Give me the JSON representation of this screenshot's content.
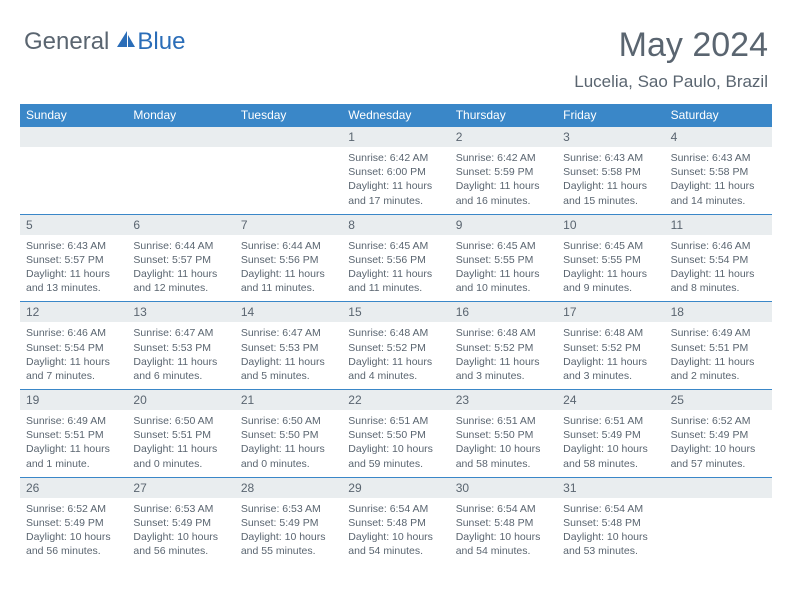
{
  "logo": {
    "general": "General",
    "blue": "Blue"
  },
  "title": "May 2024",
  "subtitle": "Lucelia, Sao Paulo, Brazil",
  "colors": {
    "header_bg": "#3a87c8",
    "header_text": "#ffffff",
    "row_divider": "#3a87c8",
    "daynum_bg": "#e9edef",
    "text": "#5a6570",
    "logo_blue": "#2a6db8"
  },
  "dayHeaders": [
    "Sunday",
    "Monday",
    "Tuesday",
    "Wednesday",
    "Thursday",
    "Friday",
    "Saturday"
  ],
  "weeks": [
    [
      {
        "n": "",
        "sr": "",
        "ss": "",
        "dl": ""
      },
      {
        "n": "",
        "sr": "",
        "ss": "",
        "dl": ""
      },
      {
        "n": "",
        "sr": "",
        "ss": "",
        "dl": ""
      },
      {
        "n": "1",
        "sr": "Sunrise: 6:42 AM",
        "ss": "Sunset: 6:00 PM",
        "dl": "Daylight: 11 hours and 17 minutes."
      },
      {
        "n": "2",
        "sr": "Sunrise: 6:42 AM",
        "ss": "Sunset: 5:59 PM",
        "dl": "Daylight: 11 hours and 16 minutes."
      },
      {
        "n": "3",
        "sr": "Sunrise: 6:43 AM",
        "ss": "Sunset: 5:58 PM",
        "dl": "Daylight: 11 hours and 15 minutes."
      },
      {
        "n": "4",
        "sr": "Sunrise: 6:43 AM",
        "ss": "Sunset: 5:58 PM",
        "dl": "Daylight: 11 hours and 14 minutes."
      }
    ],
    [
      {
        "n": "5",
        "sr": "Sunrise: 6:43 AM",
        "ss": "Sunset: 5:57 PM",
        "dl": "Daylight: 11 hours and 13 minutes."
      },
      {
        "n": "6",
        "sr": "Sunrise: 6:44 AM",
        "ss": "Sunset: 5:57 PM",
        "dl": "Daylight: 11 hours and 12 minutes."
      },
      {
        "n": "7",
        "sr": "Sunrise: 6:44 AM",
        "ss": "Sunset: 5:56 PM",
        "dl": "Daylight: 11 hours and 11 minutes."
      },
      {
        "n": "8",
        "sr": "Sunrise: 6:45 AM",
        "ss": "Sunset: 5:56 PM",
        "dl": "Daylight: 11 hours and 11 minutes."
      },
      {
        "n": "9",
        "sr": "Sunrise: 6:45 AM",
        "ss": "Sunset: 5:55 PM",
        "dl": "Daylight: 11 hours and 10 minutes."
      },
      {
        "n": "10",
        "sr": "Sunrise: 6:45 AM",
        "ss": "Sunset: 5:55 PM",
        "dl": "Daylight: 11 hours and 9 minutes."
      },
      {
        "n": "11",
        "sr": "Sunrise: 6:46 AM",
        "ss": "Sunset: 5:54 PM",
        "dl": "Daylight: 11 hours and 8 minutes."
      }
    ],
    [
      {
        "n": "12",
        "sr": "Sunrise: 6:46 AM",
        "ss": "Sunset: 5:54 PM",
        "dl": "Daylight: 11 hours and 7 minutes."
      },
      {
        "n": "13",
        "sr": "Sunrise: 6:47 AM",
        "ss": "Sunset: 5:53 PM",
        "dl": "Daylight: 11 hours and 6 minutes."
      },
      {
        "n": "14",
        "sr": "Sunrise: 6:47 AM",
        "ss": "Sunset: 5:53 PM",
        "dl": "Daylight: 11 hours and 5 minutes."
      },
      {
        "n": "15",
        "sr": "Sunrise: 6:48 AM",
        "ss": "Sunset: 5:52 PM",
        "dl": "Daylight: 11 hours and 4 minutes."
      },
      {
        "n": "16",
        "sr": "Sunrise: 6:48 AM",
        "ss": "Sunset: 5:52 PM",
        "dl": "Daylight: 11 hours and 3 minutes."
      },
      {
        "n": "17",
        "sr": "Sunrise: 6:48 AM",
        "ss": "Sunset: 5:52 PM",
        "dl": "Daylight: 11 hours and 3 minutes."
      },
      {
        "n": "18",
        "sr": "Sunrise: 6:49 AM",
        "ss": "Sunset: 5:51 PM",
        "dl": "Daylight: 11 hours and 2 minutes."
      }
    ],
    [
      {
        "n": "19",
        "sr": "Sunrise: 6:49 AM",
        "ss": "Sunset: 5:51 PM",
        "dl": "Daylight: 11 hours and 1 minute."
      },
      {
        "n": "20",
        "sr": "Sunrise: 6:50 AM",
        "ss": "Sunset: 5:51 PM",
        "dl": "Daylight: 11 hours and 0 minutes."
      },
      {
        "n": "21",
        "sr": "Sunrise: 6:50 AM",
        "ss": "Sunset: 5:50 PM",
        "dl": "Daylight: 11 hours and 0 minutes."
      },
      {
        "n": "22",
        "sr": "Sunrise: 6:51 AM",
        "ss": "Sunset: 5:50 PM",
        "dl": "Daylight: 10 hours and 59 minutes."
      },
      {
        "n": "23",
        "sr": "Sunrise: 6:51 AM",
        "ss": "Sunset: 5:50 PM",
        "dl": "Daylight: 10 hours and 58 minutes."
      },
      {
        "n": "24",
        "sr": "Sunrise: 6:51 AM",
        "ss": "Sunset: 5:49 PM",
        "dl": "Daylight: 10 hours and 58 minutes."
      },
      {
        "n": "25",
        "sr": "Sunrise: 6:52 AM",
        "ss": "Sunset: 5:49 PM",
        "dl": "Daylight: 10 hours and 57 minutes."
      }
    ],
    [
      {
        "n": "26",
        "sr": "Sunrise: 6:52 AM",
        "ss": "Sunset: 5:49 PM",
        "dl": "Daylight: 10 hours and 56 minutes."
      },
      {
        "n": "27",
        "sr": "Sunrise: 6:53 AM",
        "ss": "Sunset: 5:49 PM",
        "dl": "Daylight: 10 hours and 56 minutes."
      },
      {
        "n": "28",
        "sr": "Sunrise: 6:53 AM",
        "ss": "Sunset: 5:49 PM",
        "dl": "Daylight: 10 hours and 55 minutes."
      },
      {
        "n": "29",
        "sr": "Sunrise: 6:54 AM",
        "ss": "Sunset: 5:48 PM",
        "dl": "Daylight: 10 hours and 54 minutes."
      },
      {
        "n": "30",
        "sr": "Sunrise: 6:54 AM",
        "ss": "Sunset: 5:48 PM",
        "dl": "Daylight: 10 hours and 54 minutes."
      },
      {
        "n": "31",
        "sr": "Sunrise: 6:54 AM",
        "ss": "Sunset: 5:48 PM",
        "dl": "Daylight: 10 hours and 53 minutes."
      },
      {
        "n": "",
        "sr": "",
        "ss": "",
        "dl": ""
      }
    ]
  ]
}
